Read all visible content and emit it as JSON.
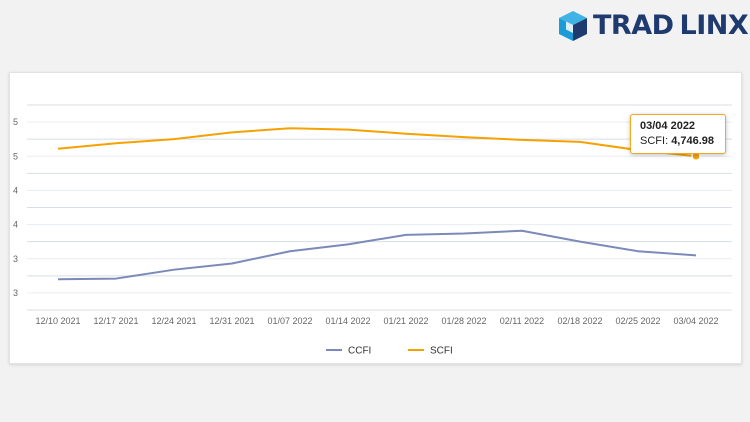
{
  "brand": {
    "name_part1": "TRAD",
    "name_part2": "LINX",
    "color": "#1e3a6e",
    "accent_color": "#1d9bd7"
  },
  "tooltip": {
    "date": "03/04 2022",
    "series": "SCFI",
    "value": "4,746.98"
  },
  "chart_data": {
    "type": "line",
    "categories": [
      "12/10 2021",
      "12/17 2021",
      "12/24 2021",
      "12/31 2021",
      "01/07 2022",
      "01/14 2022",
      "01/21 2022",
      "01/28 2022",
      "02/11 2022",
      "02/18 2022",
      "02/25 2022",
      "03/04 2022"
    ],
    "series": [
      {
        "name": "CCFI",
        "color": "#7b8ab8",
        "values": [
          2.95,
          2.96,
          3.09,
          3.18,
          3.36,
          3.46,
          3.6,
          3.62,
          3.66,
          3.5,
          3.36,
          3.3
        ]
      },
      {
        "name": "SCFI",
        "color": "#f5a200",
        "values": [
          4.86,
          4.94,
          5.0,
          5.1,
          5.16,
          5.14,
          5.08,
          5.03,
          4.99,
          4.96,
          4.84,
          4.75
        ]
      }
    ],
    "y_ticks": [
      "3",
      "3",
      "4",
      "4",
      "5",
      "5"
    ],
    "ylim": [
      2.5,
      5.5
    ],
    "grid": true,
    "legend": "bottom-center",
    "highlight": {
      "series": "SCFI",
      "index": 11
    }
  }
}
